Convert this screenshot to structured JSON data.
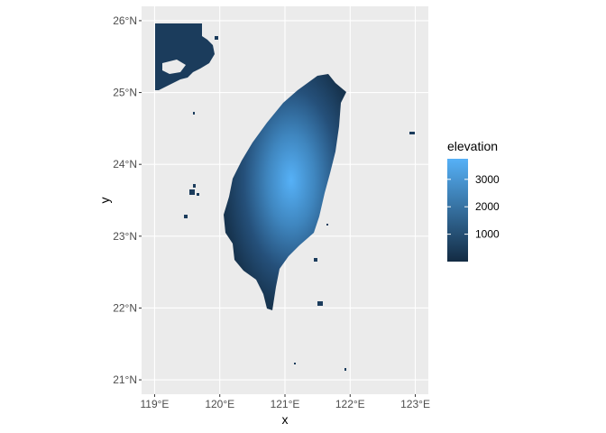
{
  "chart_data": {
    "type": "raster-map",
    "xlabel": "x",
    "ylabel": "y",
    "x_ticks": [
      {
        "value": 119,
        "label": "119°E"
      },
      {
        "value": 120,
        "label": "120°E"
      },
      {
        "value": 121,
        "label": "121°E"
      },
      {
        "value": 122,
        "label": "122°E"
      },
      {
        "value": 123,
        "label": "123°E"
      }
    ],
    "y_ticks": [
      {
        "value": 21,
        "label": "21°N"
      },
      {
        "value": 22,
        "label": "22°N"
      },
      {
        "value": 23,
        "label": "23°N"
      },
      {
        "value": 24,
        "label": "24°N"
      },
      {
        "value": 25,
        "label": "25°N"
      },
      {
        "value": 26,
        "label": "26°N"
      }
    ],
    "xlim": [
      118.8,
      123.2
    ],
    "ylim": [
      20.8,
      26.2
    ],
    "grid": true,
    "legend": {
      "title": "elevation",
      "placement": "right",
      "breaks": [
        1000,
        2000,
        3000
      ],
      "range": [
        0,
        3750
      ],
      "low_color": "#132B43",
      "high_color": "#56B1F7"
    },
    "panel_color": "#EBEBEB",
    "grid_color": "#FFFFFF"
  }
}
